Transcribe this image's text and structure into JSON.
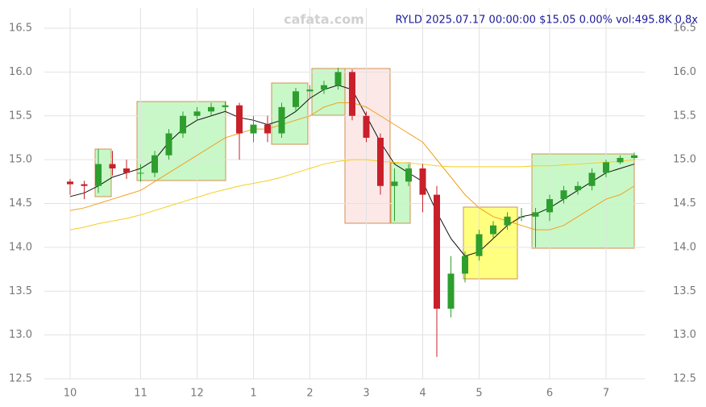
{
  "chart_data": {
    "type": "candlestick",
    "title": "RYLD 2025.07.17 00:00:00 $15.05 0.00% vol:495.8K 0.8x",
    "watermark": "cafata.com",
    "categories": [
      "10",
      null,
      null,
      null,
      null,
      "11",
      null,
      null,
      null,
      "12",
      null,
      null,
      null,
      "1",
      null,
      null,
      null,
      "2",
      null,
      null,
      null,
      "3",
      null,
      null,
      null,
      "4",
      null,
      null,
      null,
      "5",
      null,
      null,
      null,
      null,
      "6",
      null,
      null,
      null,
      "7",
      null,
      null
    ],
    "open": [
      14.75,
      14.72,
      14.7,
      14.95,
      14.9,
      14.85,
      14.85,
      15.05,
      15.3,
      15.5,
      15.55,
      15.6,
      15.62,
      15.3,
      15.4,
      15.3,
      15.6,
      15.78,
      15.8,
      15.85,
      16.0,
      15.5,
      15.25,
      14.7,
      14.75,
      14.9,
      14.6,
      13.3,
      13.7,
      13.9,
      14.15,
      14.25,
      14.35,
      14.35,
      14.4,
      14.55,
      14.65,
      14.7,
      14.85,
      14.97,
      15.02
    ],
    "high": [
      14.78,
      14.76,
      15.12,
      15.1,
      15.0,
      14.95,
      15.1,
      15.35,
      15.55,
      15.6,
      15.65,
      15.66,
      15.65,
      15.5,
      15.5,
      15.65,
      15.82,
      15.85,
      15.9,
      16.05,
      16.03,
      15.55,
      15.3,
      14.9,
      14.95,
      14.95,
      14.7,
      13.9,
      13.95,
      14.2,
      14.3,
      14.4,
      14.45,
      14.45,
      14.6,
      14.7,
      14.75,
      14.9,
      15.0,
      15.05,
      15.08
    ],
    "low": [
      14.6,
      14.55,
      14.62,
      14.82,
      14.78,
      14.75,
      14.8,
      15.0,
      15.25,
      15.45,
      15.5,
      15.55,
      15.0,
      15.2,
      15.2,
      15.25,
      15.55,
      15.7,
      15.75,
      15.8,
      15.45,
      15.2,
      14.6,
      14.3,
      14.7,
      14.4,
      12.75,
      13.2,
      13.6,
      13.85,
      14.1,
      14.2,
      14.3,
      14.0,
      14.3,
      14.5,
      14.6,
      14.65,
      14.8,
      14.95,
      15.0
    ],
    "close": [
      14.72,
      14.7,
      14.95,
      14.9,
      14.85,
      14.85,
      15.05,
      15.3,
      15.5,
      15.55,
      15.6,
      15.62,
      15.3,
      15.4,
      15.3,
      15.6,
      15.78,
      15.8,
      15.85,
      16.0,
      15.5,
      15.25,
      14.7,
      14.75,
      14.9,
      14.6,
      13.3,
      13.7,
      13.9,
      14.15,
      14.25,
      14.35,
      14.35,
      14.4,
      14.55,
      14.65,
      14.7,
      14.85,
      14.97,
      15.02,
      15.05
    ],
    "up_color": "#2e9e2e",
    "down_color": "#c8202a",
    "overlays": [
      {
        "color": "#111111",
        "values": [
          14.58,
          14.62,
          14.7,
          14.8,
          14.85,
          14.9,
          15.0,
          15.2,
          15.35,
          15.45,
          15.5,
          15.55,
          15.48,
          15.45,
          15.4,
          15.45,
          15.55,
          15.7,
          15.8,
          15.85,
          15.8,
          15.5,
          15.2,
          14.95,
          14.85,
          14.75,
          14.4,
          14.1,
          13.9,
          13.95,
          14.1,
          14.25,
          14.35,
          14.38,
          14.45,
          14.55,
          14.65,
          14.75,
          14.85,
          14.9,
          14.95
        ]
      },
      {
        "color": "#f0a020",
        "values": [
          14.42,
          14.45,
          14.5,
          14.55,
          14.6,
          14.65,
          14.75,
          14.85,
          14.95,
          15.05,
          15.15,
          15.25,
          15.3,
          15.35,
          15.35,
          15.4,
          15.45,
          15.5,
          15.6,
          15.65,
          15.65,
          15.6,
          15.5,
          15.4,
          15.3,
          15.2,
          15.0,
          14.8,
          14.6,
          14.45,
          14.35,
          14.3,
          14.25,
          14.2,
          14.2,
          14.25,
          14.35,
          14.45,
          14.55,
          14.6,
          14.7
        ]
      },
      {
        "color": "#f5d020",
        "values": [
          14.2,
          14.23,
          14.27,
          14.3,
          14.33,
          14.37,
          14.42,
          14.47,
          14.52,
          14.57,
          14.62,
          14.66,
          14.7,
          14.73,
          14.76,
          14.8,
          14.85,
          14.9,
          14.95,
          14.98,
          15.0,
          15.0,
          14.98,
          14.97,
          14.96,
          14.95,
          14.93,
          14.92,
          14.92,
          14.92,
          14.92,
          14.92,
          14.92,
          14.93,
          14.93,
          14.94,
          14.95,
          14.96,
          14.97,
          14.98,
          15.0
        ]
      }
    ],
    "ylim": [
      12.5,
      16.5
    ],
    "yticks": [
      12.5,
      {
        "value": 13,
        "label": "13.0"
      },
      13.5,
      {
        "value": 14,
        "label": "14.0"
      },
      14.5,
      {
        "value": 15,
        "label": "15.0"
      },
      15.5,
      {
        "value": 16,
        "label": "16.0"
      },
      16.5
    ],
    "grid": true
  }
}
